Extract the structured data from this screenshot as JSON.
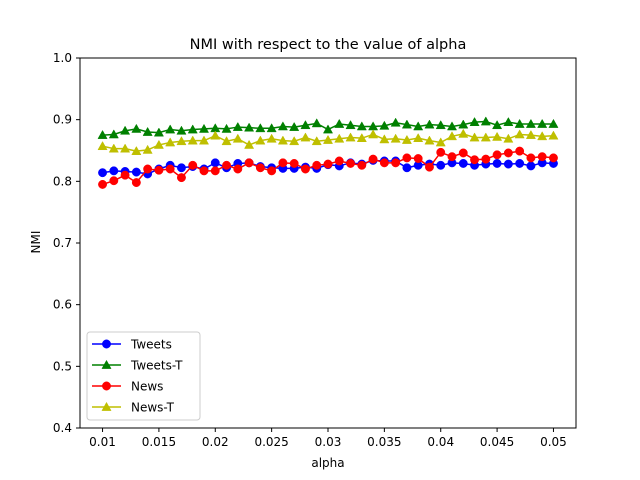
{
  "chart_data": {
    "type": "line",
    "title": "NMI with respect to the value of alpha",
    "xlabel": "alpha",
    "ylabel": "NMI",
    "xlim": [
      0.008,
      0.052
    ],
    "ylim": [
      0.4,
      1.0
    ],
    "xticks": [
      "0.01",
      "0.015",
      "0.02",
      "0.025",
      "0.03",
      "0.035",
      "0.04",
      "0.045",
      "0.05"
    ],
    "yticks": [
      "0.4",
      "0.5",
      "0.6",
      "0.7",
      "0.8",
      "0.9",
      "1.0"
    ],
    "grid": false,
    "legend_position": "lower-left",
    "x": [
      0.01,
      0.011,
      0.012,
      0.013,
      0.014,
      0.015,
      0.016,
      0.017,
      0.018,
      0.019,
      0.02,
      0.021,
      0.022,
      0.023,
      0.024,
      0.025,
      0.026,
      0.027,
      0.028,
      0.029,
      0.03,
      0.031,
      0.032,
      0.033,
      0.034,
      0.035,
      0.036,
      0.037,
      0.038,
      0.039,
      0.04,
      0.041,
      0.042,
      0.043,
      0.044,
      0.045,
      0.046,
      0.047,
      0.048,
      0.049,
      0.05
    ],
    "series": [
      {
        "name": "Tweets",
        "color": "#0000ff",
        "marker": "circle",
        "values": [
          0.814,
          0.817,
          0.816,
          0.815,
          0.812,
          0.82,
          0.826,
          0.822,
          0.824,
          0.82,
          0.83,
          0.822,
          0.829,
          0.83,
          0.824,
          0.822,
          0.821,
          0.821,
          0.823,
          0.821,
          0.827,
          0.825,
          0.83,
          0.828,
          0.834,
          0.833,
          0.833,
          0.822,
          0.826,
          0.828,
          0.826,
          0.83,
          0.829,
          0.826,
          0.828,
          0.829,
          0.828,
          0.829,
          0.825,
          0.83,
          0.829
        ]
      },
      {
        "name": "Tweets-T",
        "color": "#008000",
        "marker": "triangle",
        "values": [
          0.875,
          0.876,
          0.882,
          0.885,
          0.88,
          0.879,
          0.884,
          0.882,
          0.884,
          0.885,
          0.886,
          0.885,
          0.888,
          0.887,
          0.886,
          0.886,
          0.889,
          0.888,
          0.891,
          0.894,
          0.884,
          0.893,
          0.891,
          0.889,
          0.889,
          0.89,
          0.895,
          0.892,
          0.889,
          0.892,
          0.891,
          0.889,
          0.892,
          0.896,
          0.897,
          0.891,
          0.896,
          0.893,
          0.893,
          0.893,
          0.893
        ]
      },
      {
        "name": "News",
        "color": "#ff0000",
        "marker": "circle",
        "values": [
          0.795,
          0.801,
          0.81,
          0.798,
          0.82,
          0.818,
          0.82,
          0.806,
          0.826,
          0.817,
          0.817,
          0.826,
          0.82,
          0.83,
          0.822,
          0.817,
          0.83,
          0.829,
          0.82,
          0.826,
          0.828,
          0.833,
          0.829,
          0.826,
          0.836,
          0.83,
          0.83,
          0.838,
          0.837,
          0.823,
          0.847,
          0.84,
          0.846,
          0.835,
          0.836,
          0.843,
          0.846,
          0.849,
          0.838,
          0.84,
          0.838
        ]
      },
      {
        "name": "News-T",
        "color": "#bfbf00",
        "marker": "triangle",
        "values": [
          0.857,
          0.853,
          0.853,
          0.849,
          0.851,
          0.859,
          0.863,
          0.865,
          0.866,
          0.866,
          0.874,
          0.865,
          0.869,
          0.859,
          0.866,
          0.869,
          0.866,
          0.865,
          0.871,
          0.865,
          0.867,
          0.869,
          0.871,
          0.87,
          0.876,
          0.868,
          0.869,
          0.867,
          0.87,
          0.866,
          0.863,
          0.873,
          0.877,
          0.871,
          0.871,
          0.872,
          0.869,
          0.876,
          0.875,
          0.873,
          0.874
        ]
      }
    ]
  }
}
